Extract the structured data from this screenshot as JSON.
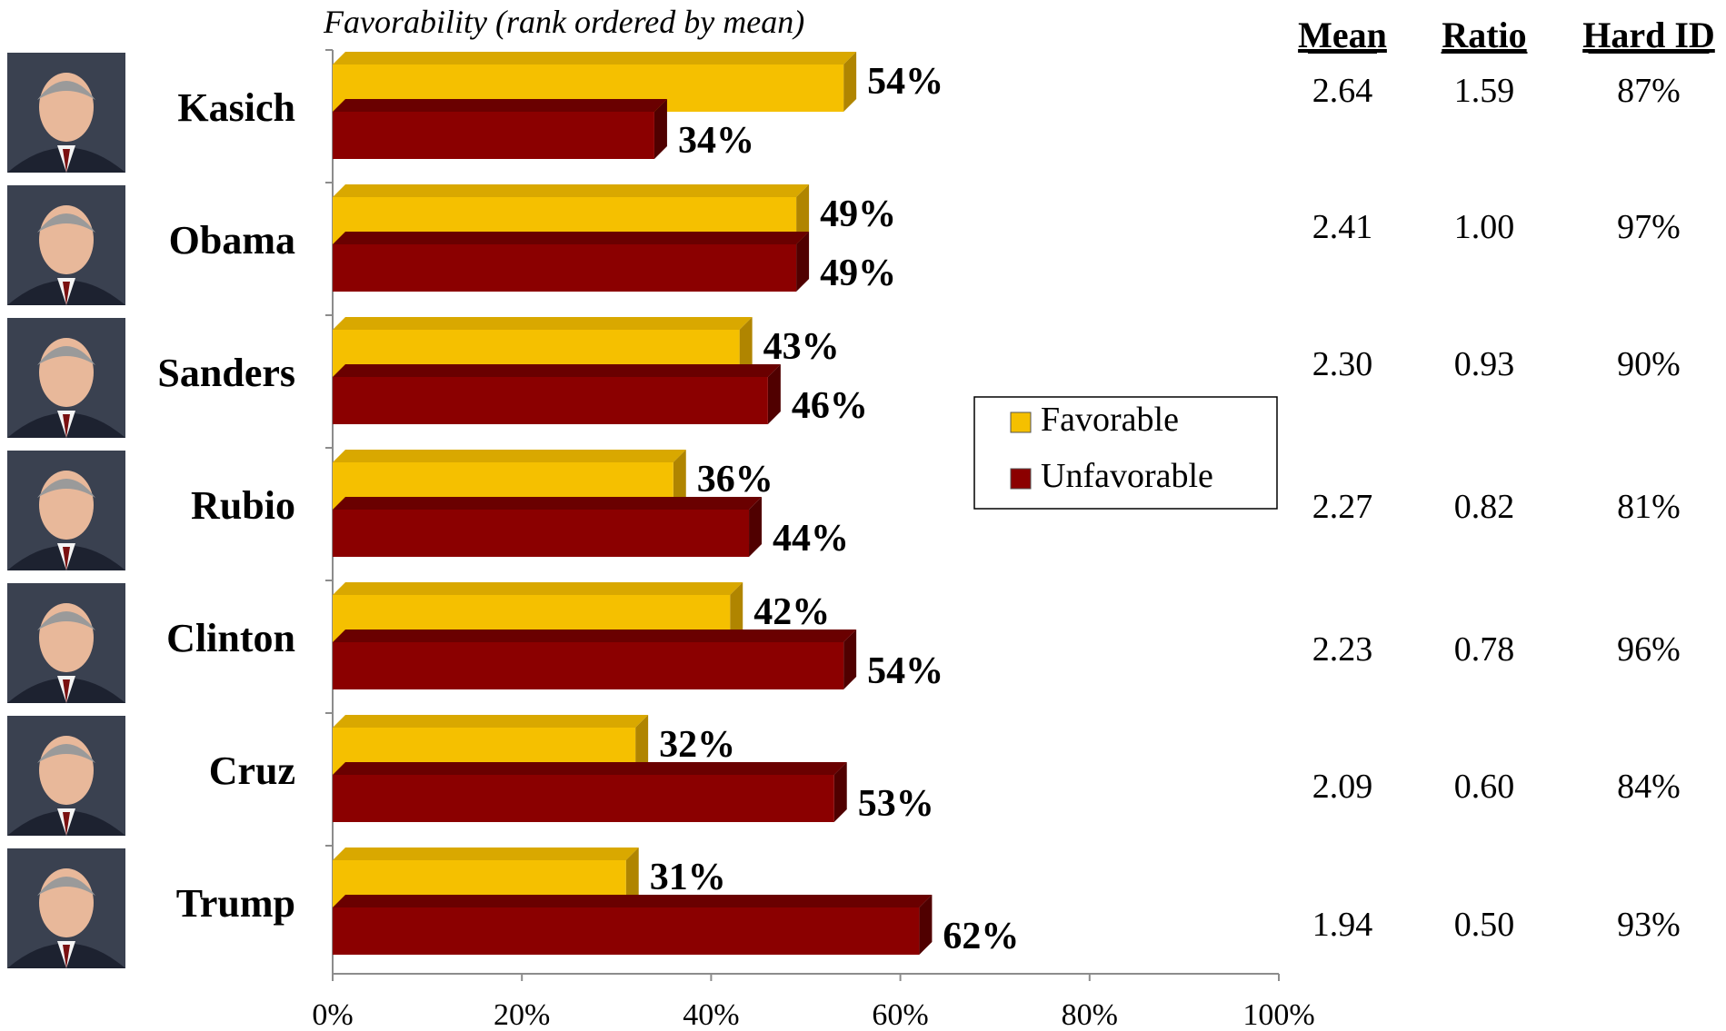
{
  "chart_data": {
    "type": "bar",
    "orientation": "horizontal",
    "title": "Favorability (rank ordered by mean)",
    "categories": [
      "Kasich",
      "Obama",
      "Sanders",
      "Rubio",
      "Clinton",
      "Cruz",
      "Trump"
    ],
    "series": [
      {
        "name": "Favorable",
        "values": [
          54,
          49,
          43,
          36,
          42,
          32,
          31
        ],
        "labels": [
          "54%",
          "49%",
          "43%",
          "36%",
          "42%",
          "32%",
          "31%"
        ]
      },
      {
        "name": "Unfavorable",
        "values": [
          34,
          49,
          46,
          44,
          54,
          53,
          62
        ],
        "labels": [
          "34%",
          "49%",
          "46%",
          "44%",
          "54%",
          "53%",
          "62%"
        ]
      }
    ],
    "xlim": [
      0,
      100
    ],
    "x_ticks": [
      0,
      20,
      40,
      60,
      80,
      100
    ],
    "x_tick_labels": [
      "0%",
      "20%",
      "40%",
      "60%",
      "80%",
      "100%"
    ],
    "grid": false,
    "legend_position": "right-center",
    "table": {
      "headers": [
        "Mean",
        "Ratio",
        "Hard ID"
      ],
      "rows": [
        [
          "2.64",
          "1.59",
          "87%"
        ],
        [
          "2.41",
          "1.00",
          "97%"
        ],
        [
          "2.30",
          "0.93",
          "90%"
        ],
        [
          "2.27",
          "0.82",
          "81%"
        ],
        [
          "2.23",
          "0.78",
          "96%"
        ],
        [
          "2.09",
          "0.60",
          "84%"
        ],
        [
          "1.94",
          "0.50",
          "93%"
        ]
      ]
    }
  },
  "colors": {
    "favorable": "#f5c000",
    "favorable_top": "#d9a800",
    "favorable_side": "#b08500",
    "unfavorable": "#8b0000",
    "unfavorable_top": "#6a0000",
    "unfavorable_side": "#500000",
    "axis": "#8c8c8c",
    "text": "#000000"
  },
  "icons": [
    "candidate-photo-icon"
  ]
}
